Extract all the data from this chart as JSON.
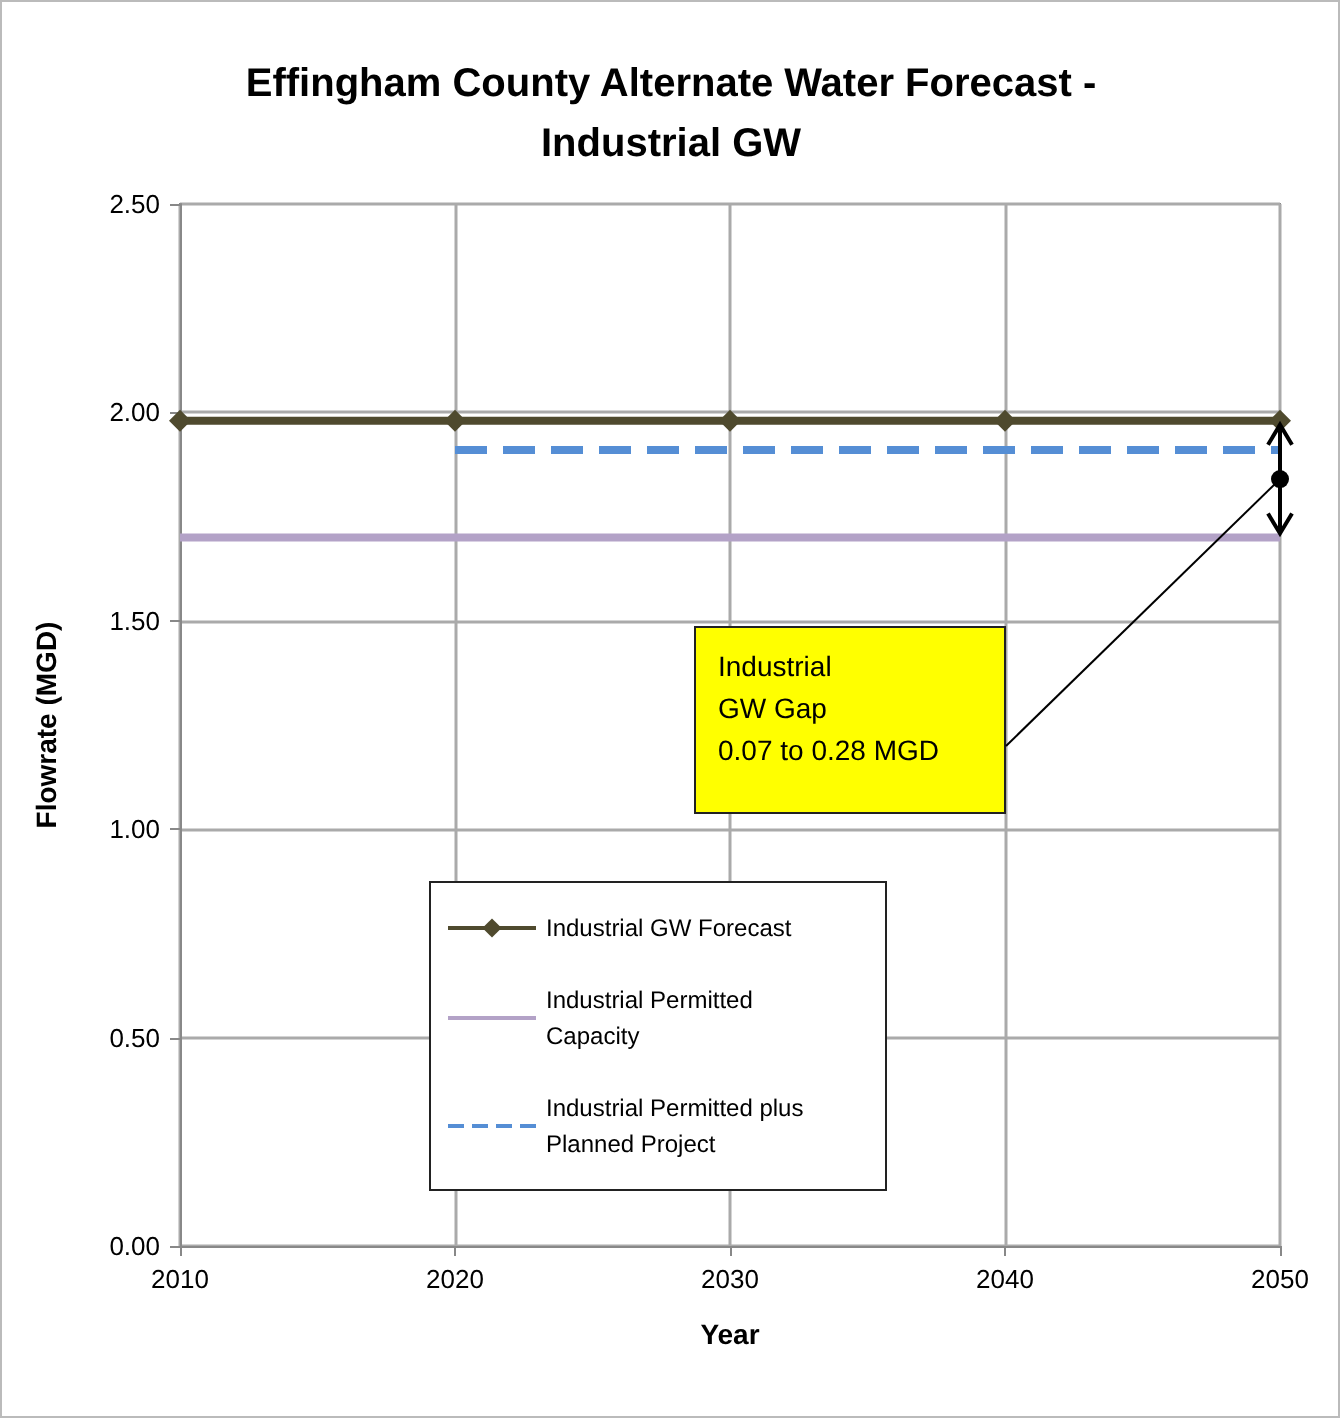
{
  "chart_data": {
    "type": "line",
    "title": "Effingham County Alternate Water Forecast -\nIndustrial GW",
    "xlabel": "Year",
    "ylabel": "Flowrate (MGD)",
    "x": [
      2010,
      2020,
      2030,
      2040,
      2050
    ],
    "series": [
      {
        "name": "Industrial GW Forecast",
        "color": "#4f4a2e",
        "values": [
          1.98,
          1.98,
          1.98,
          1.98,
          1.98
        ],
        "marker": "diamond",
        "line_style": "solid"
      },
      {
        "name": "Industrial Permitted Capacity",
        "color": "#b3a2c7",
        "values": [
          1.7,
          1.7,
          1.7,
          1.7,
          1.7
        ],
        "marker": "none",
        "line_style": "solid"
      },
      {
        "name": "Industrial Permitted plus Planned Project",
        "color": "#558ed5",
        "values": [
          null,
          1.91,
          1.91,
          1.91,
          1.91
        ],
        "marker": "none",
        "line_style": "dashed"
      }
    ],
    "xlim": [
      2010,
      2050
    ],
    "xticks": [
      2010,
      2020,
      2030,
      2040,
      2050
    ],
    "ylim": [
      0,
      2.5
    ],
    "yticks": [
      {
        "value": 0,
        "label": "0.00"
      },
      {
        "value": 0.5,
        "label": "0.50"
      },
      {
        "value": 1,
        "label": "1.00"
      },
      {
        "value": 1.5,
        "label": "1.50"
      },
      {
        "value": 2,
        "label": "2.00"
      },
      {
        "value": 2.5,
        "label": "2.50"
      }
    ],
    "grid": true,
    "legend": "bottom left",
    "annotations": [
      "Industrial\nGW Gap\n0.07 to 0.28 MGD"
    ]
  }
}
